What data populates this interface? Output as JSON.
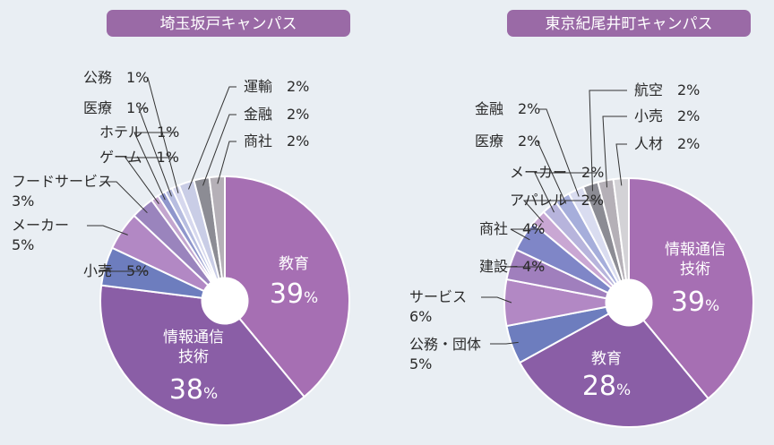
{
  "chart_data": [
    {
      "type": "pie",
      "title": "埼玉坂戸キャンパス",
      "colors": {
        "title_bg": "#9a6aa6",
        "title_text": "#ffffff",
        "background": "#e9eef3"
      },
      "slices": [
        {
          "name": "教育",
          "value": 39,
          "label": "教育",
          "pct": "39",
          "color": "#a66fb3",
          "inside": true
        },
        {
          "name": "情報通信技術",
          "value": 38,
          "label": "情報通信\n技術",
          "pct": "38",
          "color": "#8a5ea6",
          "inside": true
        },
        {
          "name": "小売",
          "value": 5,
          "label": "小売　5%",
          "color": "#6d7dbe"
        },
        {
          "name": "メーカー",
          "value": 5,
          "label": "メーカー\n5%",
          "color": "#b288c4"
        },
        {
          "name": "フードサービス",
          "value": 3,
          "label": "フードサービス\n3%",
          "color": "#9a84bd"
        },
        {
          "name": "ゲーム",
          "value": 1,
          "label": "ゲーム　1%",
          "color": "#c3a6cf"
        },
        {
          "name": "ホテル",
          "value": 1,
          "label": "ホテル　1%",
          "color": "#8f96cc"
        },
        {
          "name": "医療",
          "value": 1,
          "label": "医療　1%",
          "color": "#b7bde0"
        },
        {
          "name": "公務",
          "value": 1,
          "label": "公務　1%",
          "color": "#d6d8ee"
        },
        {
          "name": "運輸",
          "value": 2,
          "label": "運輸　2%",
          "color": "#c9cde6"
        },
        {
          "name": "金融",
          "value": 2,
          "label": "金融　2%",
          "color": "#8c8c94"
        },
        {
          "name": "商社",
          "value": 2,
          "label": "商社　2%",
          "color": "#b5b0b7"
        }
      ]
    },
    {
      "type": "pie",
      "title": "東京紀尾井町キャンパス",
      "colors": {
        "title_bg": "#9a6aa6",
        "title_text": "#ffffff",
        "background": "#e9eef3"
      },
      "slices": [
        {
          "name": "情報通信技術",
          "value": 39,
          "label": "情報通信\n技術",
          "pct": "39",
          "color": "#a66fb3",
          "inside": true
        },
        {
          "name": "教育",
          "value": 28,
          "label": "教育",
          "pct": "28",
          "color": "#8a5ea6",
          "inside": true
        },
        {
          "name": "公務・団体",
          "value": 5,
          "label": "公務・団体\n5%",
          "color": "#6d7dbe"
        },
        {
          "name": "サービス",
          "value": 6,
          "label": "サービス\n6%",
          "color": "#b288c4"
        },
        {
          "name": "建設",
          "value": 4,
          "label": "建設　4%",
          "color": "#a07fbd"
        },
        {
          "name": "商社",
          "value": 4,
          "label": "商社　4%",
          "color": "#7f86c7"
        },
        {
          "name": "アパレル",
          "value": 2,
          "label": "アパレル　2%",
          "color": "#c9a7d3"
        },
        {
          "name": "メーカー",
          "value": 2,
          "label": "メーカー　2%",
          "color": "#b7b4dc"
        },
        {
          "name": "医療",
          "value": 2,
          "label": "医療　2%",
          "color": "#a6aedb"
        },
        {
          "name": "金融",
          "value": 2,
          "label": "金融　2%",
          "color": "#d9dcf0"
        },
        {
          "name": "航空",
          "value": 2,
          "label": "航空　2%",
          "color": "#8c8c94"
        },
        {
          "name": "小売",
          "value": 2,
          "label": "小売　2%",
          "color": "#b5b0b7"
        },
        {
          "name": "人材",
          "value": 2,
          "label": "人材　2%",
          "color": "#d3d2d6"
        }
      ]
    }
  ]
}
